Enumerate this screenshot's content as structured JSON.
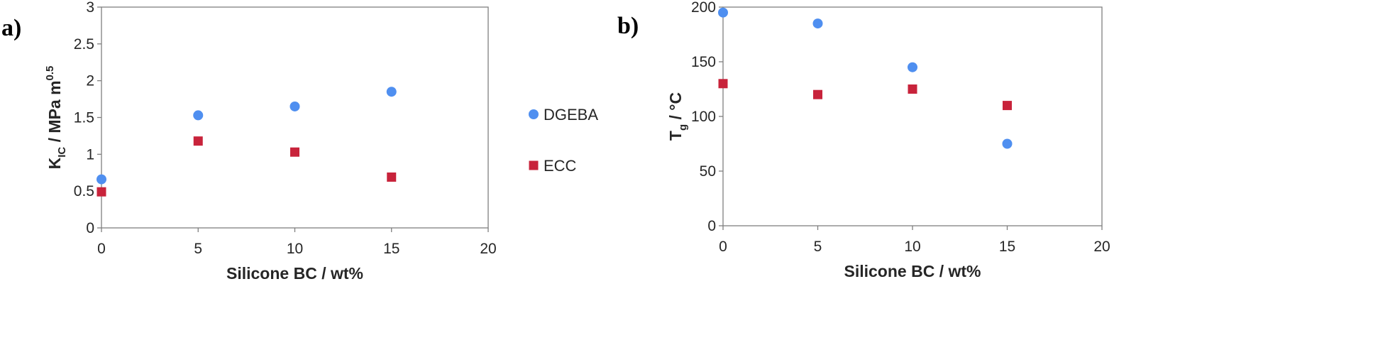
{
  "colors": {
    "DGEBA": "#4f8ff0",
    "ECC": "#c8233b",
    "axis": "#7f7f7f",
    "text": "#262626"
  },
  "legend": {
    "placement": "right-of-panel-a",
    "entries": [
      {
        "label": "DGEBA",
        "marker": "circle"
      },
      {
        "label": "ECC",
        "marker": "square"
      }
    ]
  },
  "chart_data": [
    {
      "panel_label": "a)",
      "type": "scatter",
      "xlabel": "Silicone BC / wt%",
      "ylabel_main": "K",
      "ylabel_sub": "IC",
      "ylabel_rest": " /  MPa m",
      "ylabel_sup": "0.5",
      "xlim": [
        0,
        20
      ],
      "ylim": [
        0,
        3
      ],
      "xticks": [
        "0",
        "5",
        "10",
        "15",
        "20"
      ],
      "yticks": [
        "0",
        "0.5",
        "1",
        "1.5",
        "2",
        "2.5",
        "3"
      ],
      "grid": false,
      "series": [
        {
          "name": "DGEBA",
          "marker": "circle",
          "x": [
            0,
            5,
            10,
            15
          ],
          "y": [
            0.66,
            1.53,
            1.65,
            1.85
          ]
        },
        {
          "name": "ECC",
          "marker": "square",
          "x": [
            0,
            5,
            10,
            15
          ],
          "y": [
            0.49,
            1.18,
            1.03,
            0.69
          ]
        }
      ]
    },
    {
      "panel_label": "b)",
      "type": "scatter",
      "xlabel": "Silicone BC / wt%",
      "ylabel_main": "T",
      "ylabel_sub": "g",
      "ylabel_rest": " / °C",
      "ylabel_sup": "",
      "xlim": [
        0,
        20
      ],
      "ylim": [
        0,
        200
      ],
      "xticks": [
        "0",
        "5",
        "10",
        "15",
        "20"
      ],
      "yticks": [
        "0",
        "50",
        "100",
        "150",
        "200"
      ],
      "grid": false,
      "series": [
        {
          "name": "DGEBA",
          "marker": "circle",
          "x": [
            0,
            5,
            10,
            15
          ],
          "y": [
            195,
            185,
            145,
            75
          ]
        },
        {
          "name": "ECC",
          "marker": "square",
          "x": [
            0,
            5,
            10,
            15
          ],
          "y": [
            130,
            120,
            125,
            110
          ]
        }
      ]
    }
  ]
}
